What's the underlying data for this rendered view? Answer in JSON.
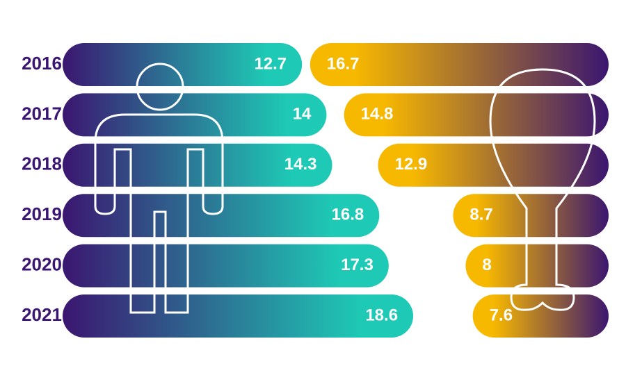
{
  "chart_data": {
    "type": "butterfly-bar",
    "categories": [
      "2016",
      "2017",
      "2018",
      "2019",
      "2020",
      "2021"
    ],
    "series": [
      {
        "color": "#1ec9b5",
        "values": [
          12.7,
          14,
          14.3,
          16.8,
          17.3,
          18.6
        ]
      },
      {
        "color": "#f7b800",
        "values": [
          16.7,
          14.8,
          12.9,
          8.7,
          8,
          7.6
        ]
      }
    ]
  }
}
